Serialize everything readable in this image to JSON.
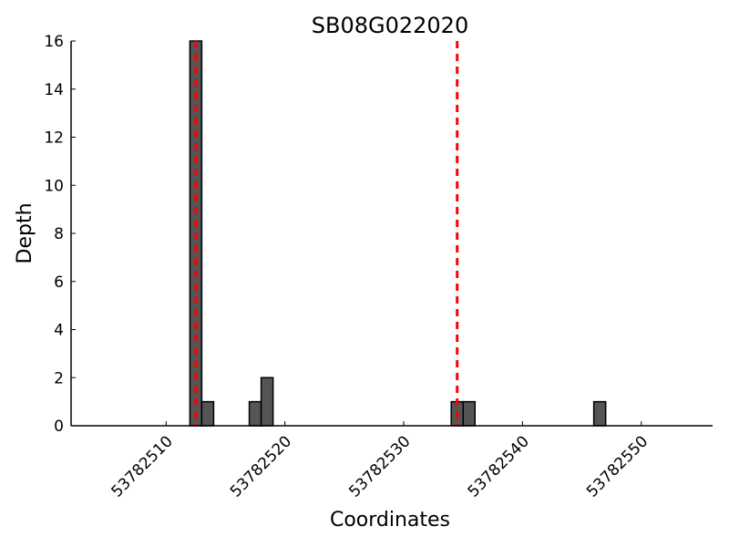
{
  "chart_data": {
    "type": "bar",
    "title": "SB08G022020",
    "xlabel": "Coordinates",
    "ylabel": "Depth",
    "xlim": [
      53782502,
      53782556
    ],
    "ylim": [
      0,
      16
    ],
    "xticks": [
      53782510,
      53782520,
      53782530,
      53782540,
      53782550
    ],
    "yticks": [
      0,
      2,
      4,
      6,
      8,
      10,
      12,
      14,
      16
    ],
    "grid": false,
    "bar_color": "#555555",
    "bins": [
      {
        "start": 53782512,
        "end": 53782513,
        "value": 16
      },
      {
        "start": 53782513,
        "end": 53782514,
        "value": 1
      },
      {
        "start": 53782517,
        "end": 53782518,
        "value": 1
      },
      {
        "start": 53782518,
        "end": 53782519,
        "value": 2
      },
      {
        "start": 53782534,
        "end": 53782535,
        "value": 1
      },
      {
        "start": 53782535,
        "end": 53782536,
        "value": 1
      },
      {
        "start": 53782546,
        "end": 53782547,
        "value": 1
      }
    ],
    "markers": {
      "color": "#ff0000",
      "style": "dashed",
      "x": [
        53782512.5,
        53782534.5
      ]
    }
  }
}
